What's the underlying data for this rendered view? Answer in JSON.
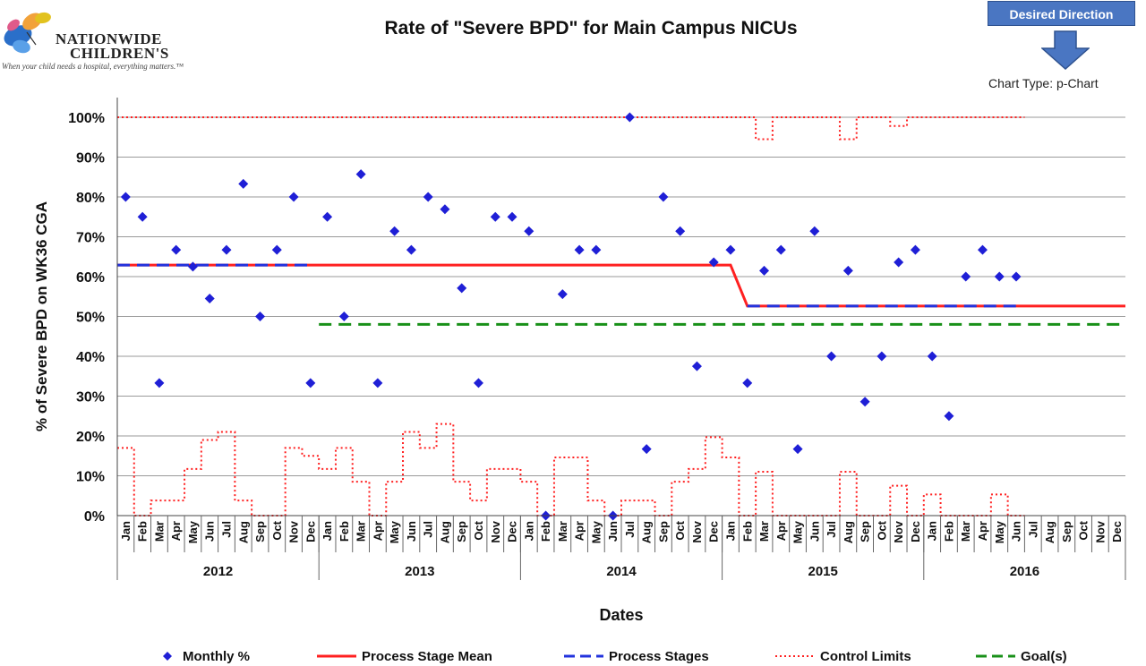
{
  "logo": {
    "brand_line1": "NATIONWIDE",
    "brand_line2": "CHILDREN'S",
    "tagline": "When your child needs a hospital, everything matters.™"
  },
  "header": {
    "title": "Rate of \"Severe BPD\" for Main Campus NICUs",
    "desired_direction": "Desired Direction",
    "chart_type": "Chart Type: p-Chart"
  },
  "legend": {
    "monthly": "Monthly %",
    "mean": "Process Stage Mean",
    "stages": "Process Stages",
    "limits": "Control Limits",
    "goal": "Goal(s)"
  },
  "colors": {
    "points": "#1f1fd6",
    "mean": "#ff2020",
    "stages": "#2233dd",
    "limits": "#ff2020",
    "goal": "#189018",
    "grid": "#9a9a9a"
  },
  "chart_data": {
    "type": "line",
    "title": "Rate of \"Severe BPD\" for Main Campus NICUs",
    "xlabel": "Dates",
    "ylabel": "% of Severe BPD on WK36 CGA",
    "ylim": [
      0,
      100
    ],
    "yticks": [
      "0%",
      "10%",
      "20%",
      "30%",
      "40%",
      "50%",
      "60%",
      "70%",
      "80%",
      "90%",
      "100%"
    ],
    "grid": true,
    "legend_position": "bottom",
    "months": [
      "Jan",
      "Feb",
      "Mar",
      "Apr",
      "May",
      "Jun",
      "Jul",
      "Aug",
      "Sep",
      "Oct",
      "Nov",
      "Dec"
    ],
    "years": [
      "2012",
      "2013",
      "2014",
      "2015",
      "2016"
    ],
    "series": [
      {
        "name": "Monthly %",
        "values": [
          80,
          75,
          33.3,
          66.7,
          62.5,
          54.5,
          66.7,
          83.3,
          50,
          66.7,
          80,
          33.3,
          75,
          50,
          85.7,
          33.3,
          71.4,
          66.7,
          80,
          76.9,
          57.1,
          33.3,
          75,
          75,
          71.4,
          0,
          55.6,
          66.7,
          66.7,
          0,
          100,
          16.7,
          80,
          71.4,
          37.5,
          63.6,
          66.7,
          33.3,
          61.5,
          66.7,
          16.7,
          71.4,
          40,
          61.5,
          28.6,
          40,
          63.6,
          66.7,
          40,
          25,
          60,
          66.7,
          60,
          60,
          null,
          null,
          null,
          null,
          null,
          null
        ]
      },
      {
        "name": "Process Stage Mean",
        "segments": [
          {
            "from": "2012-01",
            "to": "2015-01",
            "value": 62.9
          },
          {
            "from": "2015-02",
            "to": "2016-12",
            "value": 52.6
          }
        ]
      },
      {
        "name": "Process Stages",
        "segments": [
          {
            "from": "2012-01",
            "to": "2012-12",
            "value": 62.9
          },
          {
            "from": "2015-02",
            "to": "2016-06",
            "value": 52.6
          }
        ]
      },
      {
        "name": "Control Limits",
        "ucl": [
          100,
          100,
          100,
          100,
          100,
          100,
          100,
          100,
          100,
          100,
          100,
          100,
          100,
          100,
          100,
          100,
          100,
          100,
          100,
          100,
          100,
          100,
          100,
          100,
          100,
          100,
          100,
          100,
          100,
          100,
          100,
          100,
          100,
          100,
          100,
          100,
          100,
          100,
          94.5,
          100,
          100,
          100,
          100,
          94.5,
          100,
          100,
          97.8,
          100,
          100,
          100,
          100,
          100,
          100,
          100,
          null,
          null,
          null,
          null,
          null,
          null
        ],
        "lcl": [
          17,
          0,
          3.8,
          3.8,
          11.7,
          19,
          21,
          3.8,
          0,
          0,
          17,
          15,
          11.7,
          17,
          8.5,
          0,
          8.5,
          21,
          17,
          23,
          8.5,
          3.8,
          11.7,
          11.7,
          8.5,
          0,
          14.6,
          14.6,
          3.8,
          0,
          3.8,
          3.8,
          0,
          8.5,
          11.7,
          19.7,
          14.6,
          0,
          11,
          0,
          0,
          0,
          0,
          11,
          0,
          0,
          7.5,
          0,
          5.3,
          0,
          0,
          0,
          5.3,
          0,
          null,
          null,
          null,
          null,
          null,
          null
        ]
      },
      {
        "name": "Goal(s)",
        "segments": [
          {
            "from": "2013-01",
            "to": "2016-12",
            "value": 48
          }
        ]
      }
    ]
  }
}
